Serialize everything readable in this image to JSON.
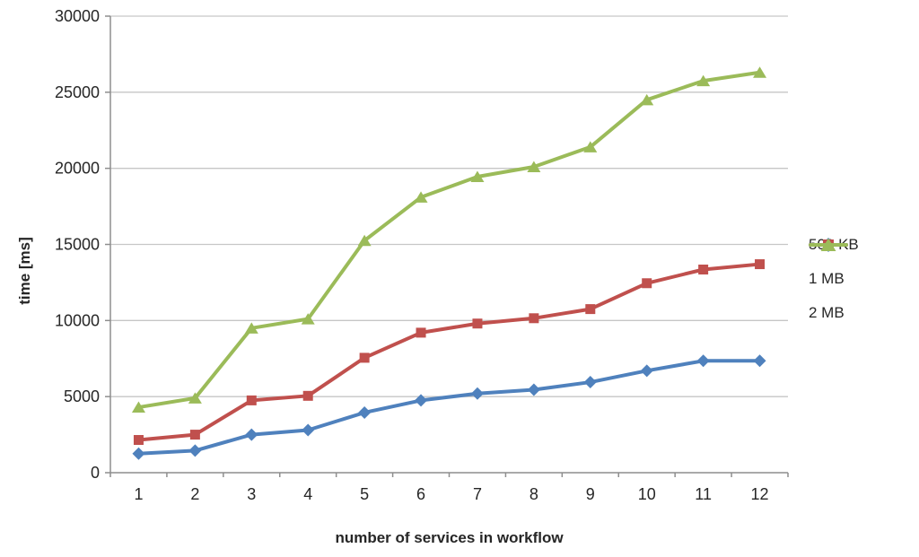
{
  "chart_data": {
    "type": "line",
    "title": "",
    "xlabel": "number of services in workflow",
    "ylabel": "time [ms]",
    "categories": [
      1,
      2,
      3,
      4,
      5,
      6,
      7,
      8,
      9,
      10,
      11,
      12
    ],
    "series": [
      {
        "name": "500 KB",
        "marker": "diamond",
        "color": "#4F81BD",
        "values": [
          1250,
          1450,
          2500,
          2800,
          3950,
          4750,
          5200,
          5450,
          5950,
          6700,
          7350,
          7350
        ]
      },
      {
        "name": "1 MB",
        "marker": "square",
        "color": "#C0504D",
        "values": [
          2150,
          2500,
          4750,
          5050,
          7550,
          9200,
          9800,
          10150,
          10750,
          12450,
          13350,
          13700
        ]
      },
      {
        "name": "2 MB",
        "marker": "triangle",
        "color": "#9BBB59",
        "values": [
          4300,
          4900,
          9500,
          10100,
          15250,
          18100,
          19450,
          20100,
          21400,
          24500,
          25750,
          26300
        ]
      }
    ],
    "ylim": [
      0,
      30000
    ],
    "yticks": [
      0,
      5000,
      10000,
      15000,
      20000,
      25000,
      30000
    ],
    "grid": true,
    "legend_position": "right"
  },
  "colors": {
    "background": "#FFFFFF",
    "gridline": "#C6C6C6",
    "axis": "#8E8E8E",
    "text": "#262626"
  }
}
